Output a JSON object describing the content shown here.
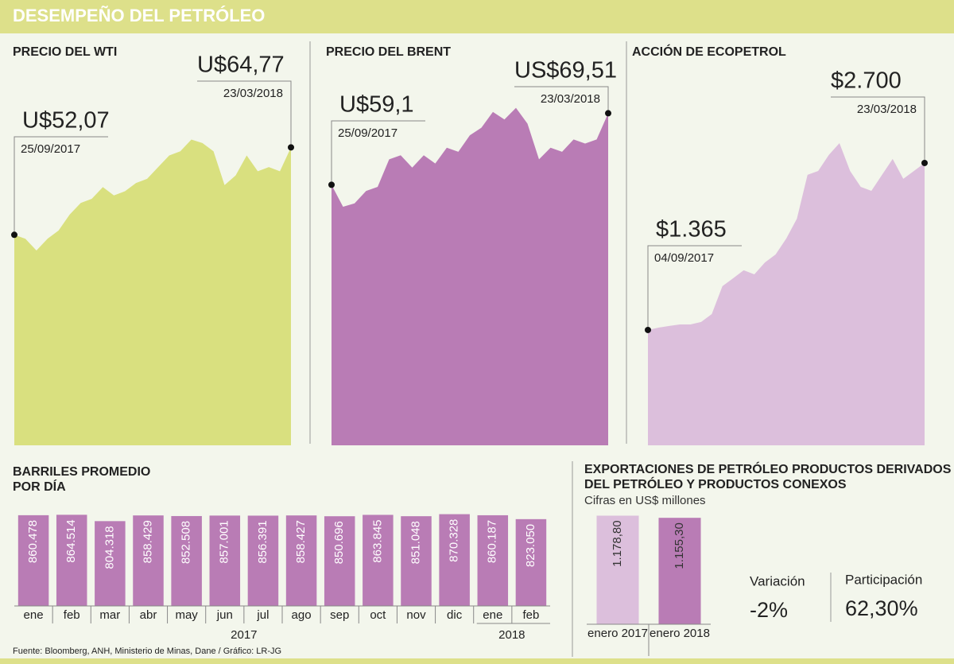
{
  "title": "DESEMPEÑO DEL PETRÓLEO",
  "source": "Fuente: Bloomberg, ANH, Ministerio de Minas, Dane / Gráfico: LR-JG",
  "chart_data": [
    {
      "type": "area",
      "title": "PRECIO DEL WTI",
      "color": "#d9e07f",
      "x": [
        "25/09/2017",
        null,
        null,
        null,
        null,
        null,
        null,
        null,
        null,
        null,
        null,
        null,
        null,
        null,
        null,
        null,
        null,
        null,
        null,
        null,
        null,
        null,
        null,
        null,
        null,
        "23/03/2018"
      ],
      "values": [
        52.07,
        51.5,
        49.8,
        51.5,
        52.7,
        55.0,
        56.7,
        57.3,
        59.0,
        57.8,
        58.4,
        59.6,
        60.2,
        61.9,
        63.6,
        64.2,
        65.9,
        65.4,
        64.2,
        59.3,
        60.7,
        63.6,
        61.3,
        61.9,
        61.3,
        64.77
      ],
      "value_labels": [
        "U$52,07",
        null,
        null,
        null,
        null,
        null,
        null,
        null,
        null,
        null,
        null,
        null,
        null,
        null,
        null,
        null,
        null,
        null,
        null,
        null,
        null,
        null,
        null,
        null,
        null,
        "U$64,77"
      ],
      "ylim": [
        21.5,
        80.4
      ]
    },
    {
      "type": "area",
      "title": "PRECIO DEL BRENT",
      "color": "#b97cb5",
      "x": [
        "25/09/2017",
        null,
        null,
        null,
        null,
        null,
        null,
        null,
        null,
        null,
        null,
        null,
        null,
        null,
        null,
        null,
        null,
        null,
        null,
        null,
        null,
        null,
        null,
        null,
        "23/03/2018"
      ],
      "values": [
        59.1,
        55.9,
        56.4,
        58.2,
        58.8,
        62.8,
        63.4,
        61.6,
        63.4,
        62.2,
        64.5,
        63.9,
        66.3,
        67.4,
        69.7,
        68.6,
        70.3,
        68.0,
        62.8,
        64.5,
        63.9,
        65.7,
        65.1,
        65.7,
        69.51
      ],
      "value_labels": [
        "U$59,1",
        null,
        null,
        null,
        null,
        null,
        null,
        null,
        null,
        null,
        null,
        null,
        null,
        null,
        null,
        null,
        null,
        null,
        null,
        null,
        null,
        null,
        null,
        null,
        "US$69,51"
      ],
      "ylim": [
        21.2,
        80.2
      ]
    },
    {
      "type": "area",
      "title": "ACCIÓN DE ECOPETROL",
      "color": "#dcbfdc",
      "x": [
        "04/09/2017",
        null,
        null,
        null,
        null,
        null,
        null,
        null,
        null,
        null,
        null,
        null,
        null,
        null,
        null,
        null,
        null,
        null,
        null,
        null,
        null,
        null,
        null,
        null,
        null,
        null,
        "23/03/2018"
      ],
      "values": [
        1365,
        1384,
        1397,
        1409,
        1409,
        1429,
        1492,
        1715,
        1778,
        1842,
        1810,
        1905,
        1969,
        2096,
        2255,
        2605,
        2636,
        2764,
        2859,
        2636,
        2509,
        2477,
        2605,
        2732,
        2573,
        2636,
        2700
      ],
      "value_labels": [
        "$1.365",
        null,
        null,
        null,
        null,
        null,
        null,
        null,
        null,
        null,
        null,
        null,
        null,
        null,
        null,
        null,
        null,
        null,
        null,
        null,
        null,
        null,
        null,
        null,
        null,
        null,
        "$2.700"
      ],
      "ylim": [
        443,
        3685
      ]
    },
    {
      "type": "bar",
      "title": "BARRILES PROMEDIO POR DÍA",
      "color": "#b97cb5",
      "categories": [
        "ene",
        "feb",
        "mar",
        "abr",
        "may",
        "jun",
        "jul",
        "ago",
        "sep",
        "oct",
        "nov",
        "dic",
        "ene",
        "feb"
      ],
      "groups": [
        {
          "name": "2017",
          "size": 12
        },
        {
          "name": "2018",
          "size": 2
        }
      ],
      "values": [
        860478,
        864514,
        804318,
        858429,
        852508,
        857001,
        856391,
        858427,
        850696,
        863845,
        851048,
        870328,
        860187,
        823050
      ],
      "value_labels": [
        "860.478",
        "864.514",
        "804.318",
        "858.429",
        "852.508",
        "857.001",
        "856.391",
        "858.427",
        "850.696",
        "863.845",
        "851.048",
        "870.328",
        "860.187",
        "823.050"
      ],
      "ylim": [
        0,
        920000
      ]
    },
    {
      "type": "bar",
      "title": "EXPORTACIONES DE PETRÓLEO PRODUCTOS DERIVADOS DEL PETRÓLEO Y PRODUCTOS CONEXOS",
      "subtitle": "Cifras en US$ millones",
      "categories": [
        "enero 2017",
        "enero 2018"
      ],
      "colors": [
        "#dcbfdc",
        "#b97cb5"
      ],
      "values": [
        1178.8,
        1155.3
      ],
      "value_labels": [
        "1.178,80",
        "1.155,30"
      ],
      "ylim": [
        0,
        1200
      ]
    }
  ],
  "stats": [
    {
      "label": "Variación",
      "value": "-2%"
    },
    {
      "label": "Participación",
      "value": "62,30%"
    }
  ]
}
